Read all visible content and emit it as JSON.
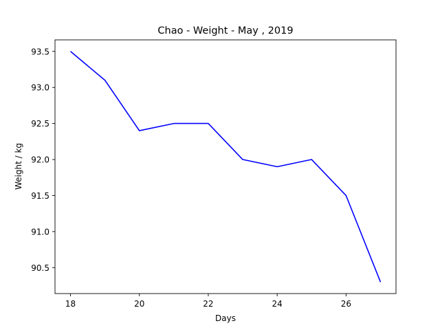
{
  "chart_data": {
    "type": "line",
    "title": "Chao - Weight - May , 2019",
    "xlabel": "Days",
    "ylabel": "Weight / kg",
    "series": [
      {
        "color": "#0000ff",
        "x": [
          18,
          19,
          20,
          21,
          22,
          23,
          24,
          25,
          26,
          27
        ],
        "y": [
          93.5,
          93.1,
          92.4,
          92.5,
          92.5,
          92.0,
          91.9,
          92.0,
          91.5,
          90.3
        ]
      }
    ],
    "xlim": [
      17.55,
      27.45
    ],
    "ylim": [
      90.14,
      93.66
    ],
    "xticks": [
      18,
      20,
      22,
      24,
      26
    ],
    "yticks": [
      90.5,
      91.0,
      91.5,
      92.0,
      92.5,
      93.0,
      93.5
    ],
    "ytick_labels": [
      "90.5",
      "91.0",
      "91.5",
      "92.0",
      "92.5",
      "93.0",
      "93.5"
    ],
    "grid": false
  }
}
